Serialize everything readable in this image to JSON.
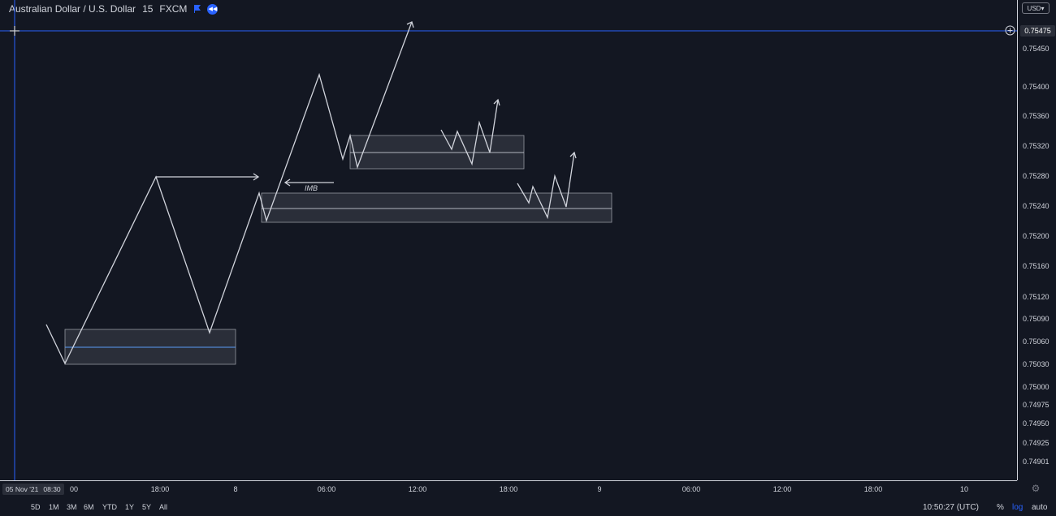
{
  "header": {
    "symbol": "Australian Dollar / U.S. Dollar",
    "interval": "15",
    "exchange": "FXCM",
    "flag_icon": "flag-icon",
    "replay_icon": "replay-icon"
  },
  "price_axis": {
    "currency": "USD",
    "current_price": "0.75475",
    "labels": [
      "0.75450",
      "0.75400",
      "0.75360",
      "0.75320",
      "0.75280",
      "0.75240",
      "0.75200",
      "0.75160",
      "0.75120",
      "0.75090",
      "0.75060",
      "0.75030",
      "0.75000",
      "0.74975",
      "0.74950",
      "0.74925",
      "0.74901"
    ]
  },
  "time_axis": {
    "date_badge": {
      "date": "05 Nov '21",
      "time": "08:30"
    },
    "labels": [
      "00",
      "18:00",
      "8",
      "06:00",
      "12:00",
      "18:00",
      "9",
      "06:00",
      "12:00",
      "18:00",
      "10"
    ]
  },
  "annotations": {
    "imb_label": "IMB"
  },
  "bottom_bar": {
    "ranges": [
      "5D",
      "1M",
      "3M",
      "6M",
      "YTD",
      "1Y",
      "5Y",
      "All"
    ],
    "clock": "10:50:27 (UTC)",
    "percent": "%",
    "log": "log",
    "auto": "auto"
  },
  "colors": {
    "background": "#131722",
    "text": "#d1d4dc",
    "crosshair": "#2962ff",
    "zone_fill": "#2a2e39",
    "accent": "#2962ff"
  }
}
